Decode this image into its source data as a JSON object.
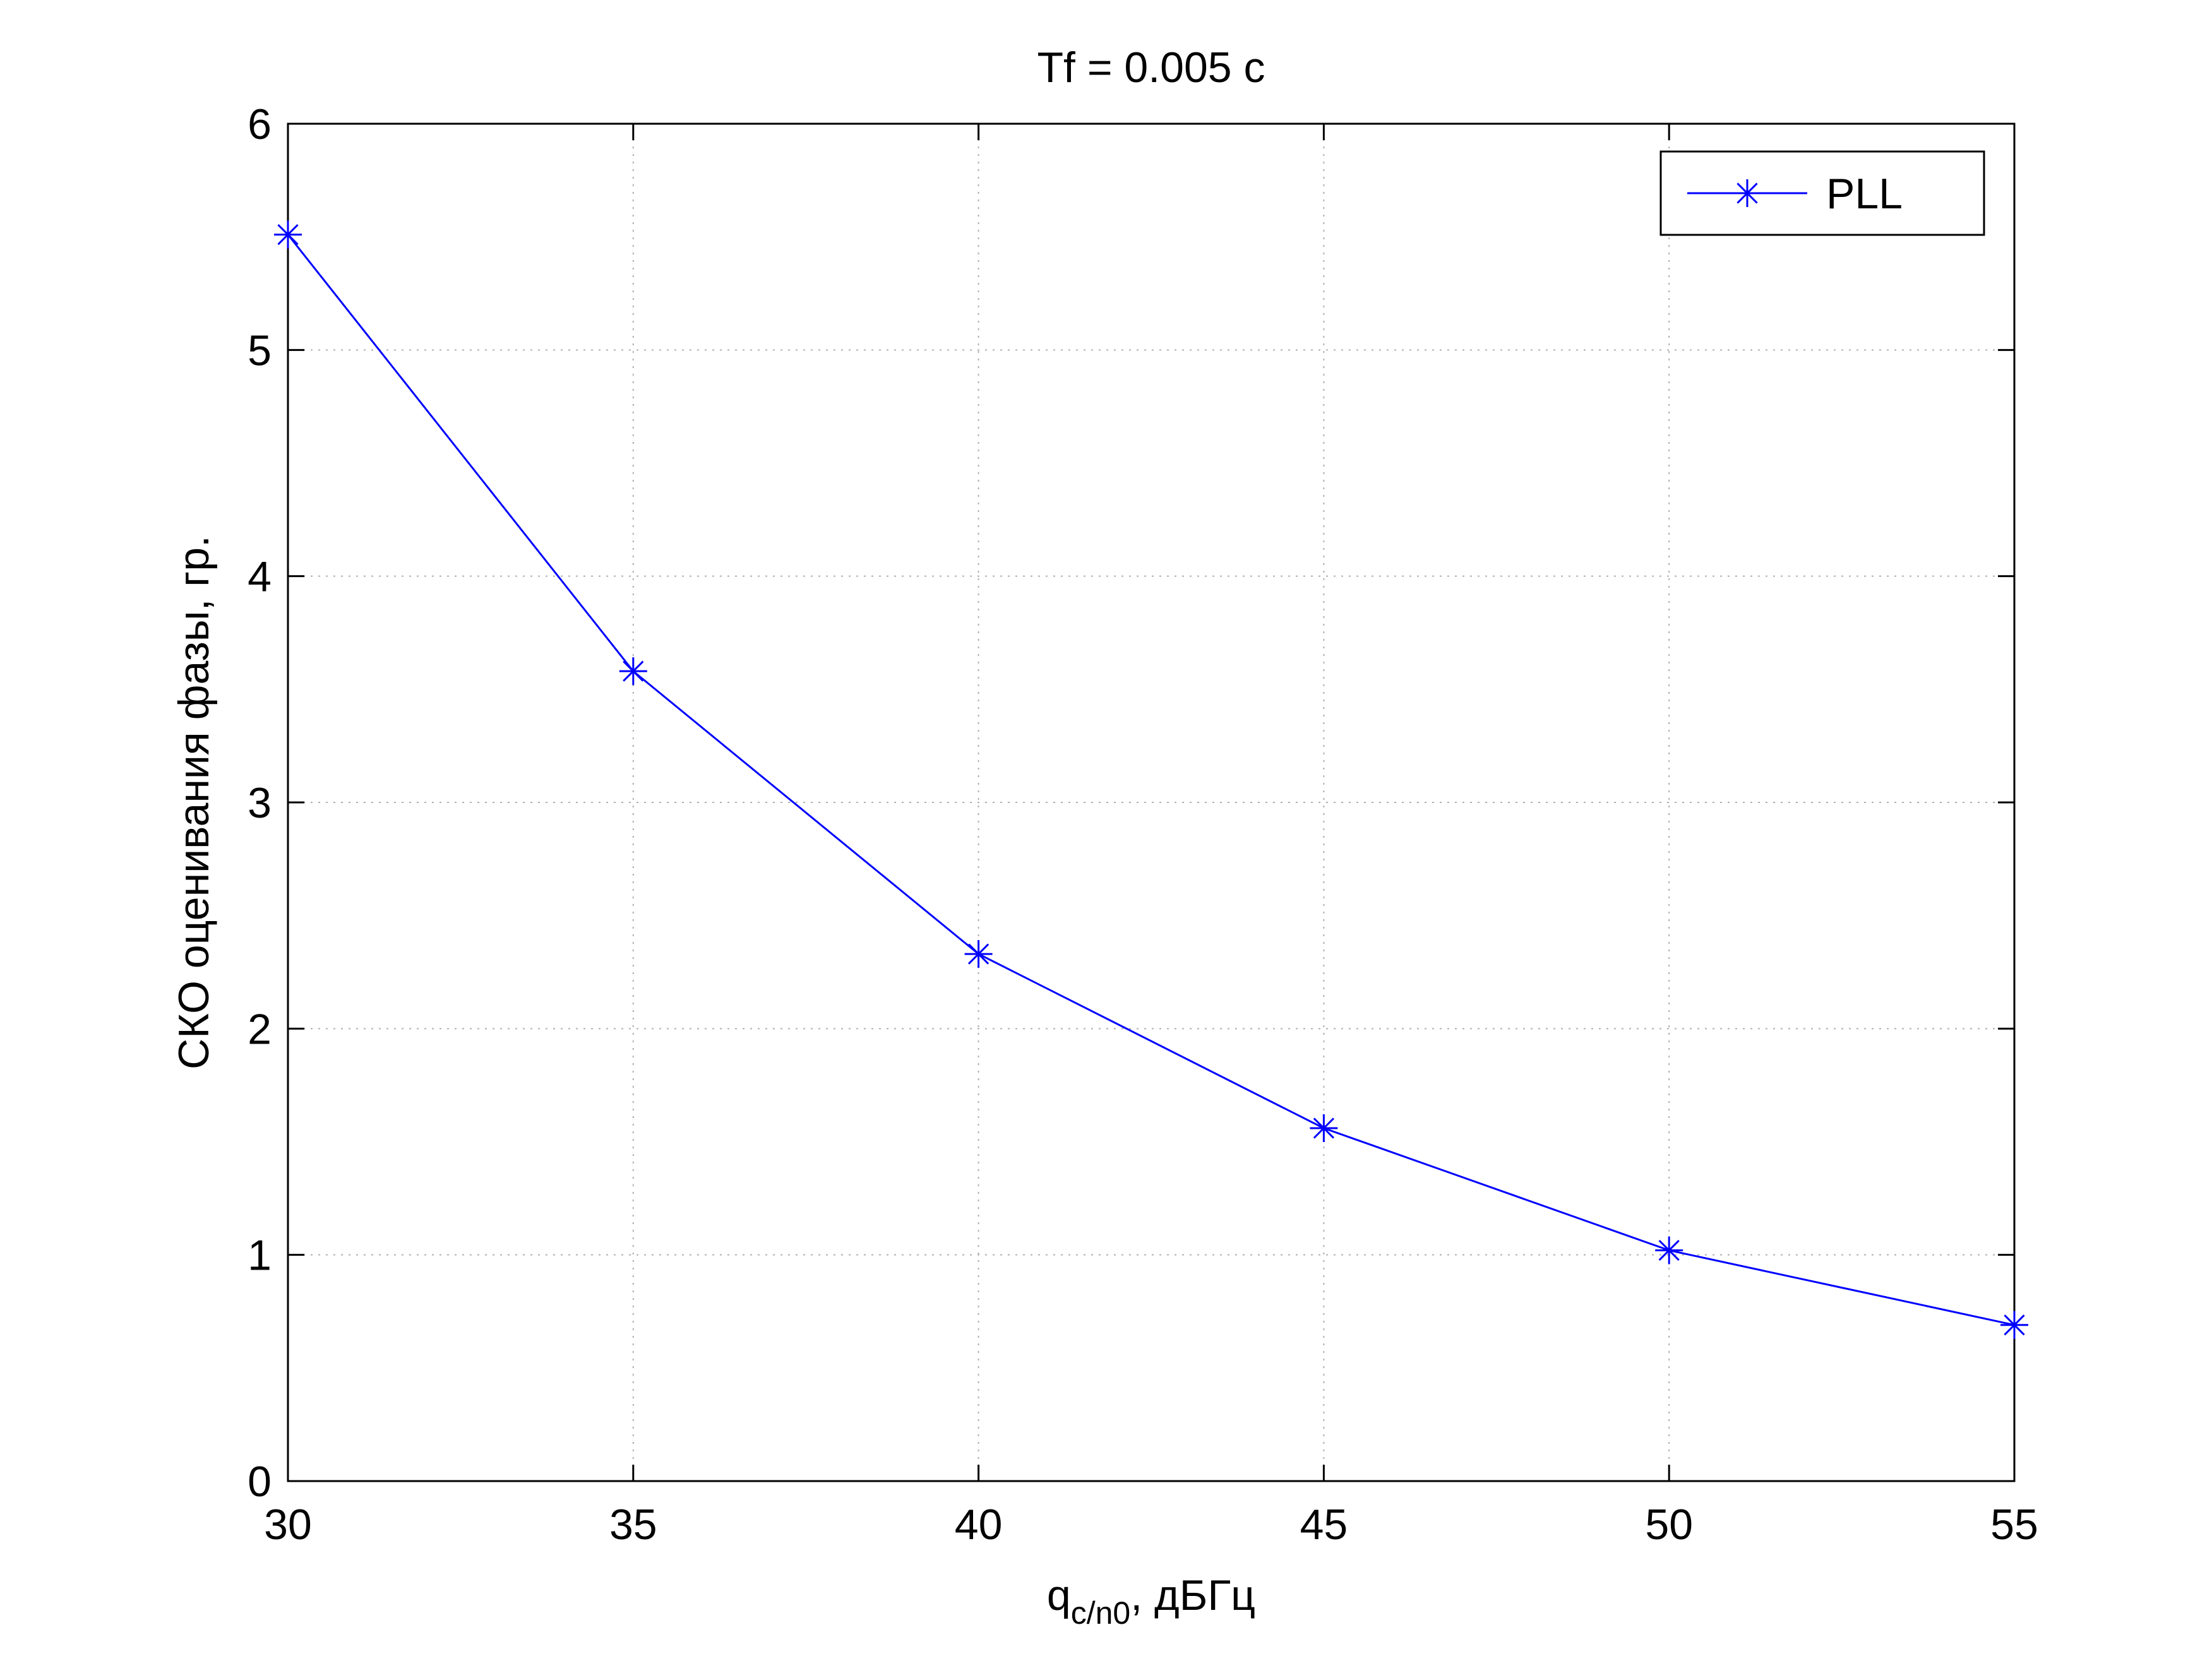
{
  "chart_data": {
    "type": "line",
    "title": "Tf = 0.005 c",
    "xlabel": {
      "main": "q",
      "subscript": "c/n0",
      "suffix": ", дБГц"
    },
    "ylabel": "СКО оценивания фазы, гр.",
    "xlim": [
      30,
      55
    ],
    "ylim": [
      0,
      6
    ],
    "xticks": [
      30,
      35,
      40,
      45,
      50,
      55
    ],
    "yticks": [
      0,
      1,
      2,
      3,
      4,
      5,
      6
    ],
    "grid": true,
    "legend_position": "top-right",
    "series": [
      {
        "name": "PLL",
        "color": "#0000ff",
        "marker": "asterisk",
        "x": [
          30,
          35,
          40,
          45,
          50,
          55
        ],
        "y": [
          5.51,
          3.58,
          2.33,
          1.56,
          1.02,
          0.69
        ]
      }
    ]
  }
}
